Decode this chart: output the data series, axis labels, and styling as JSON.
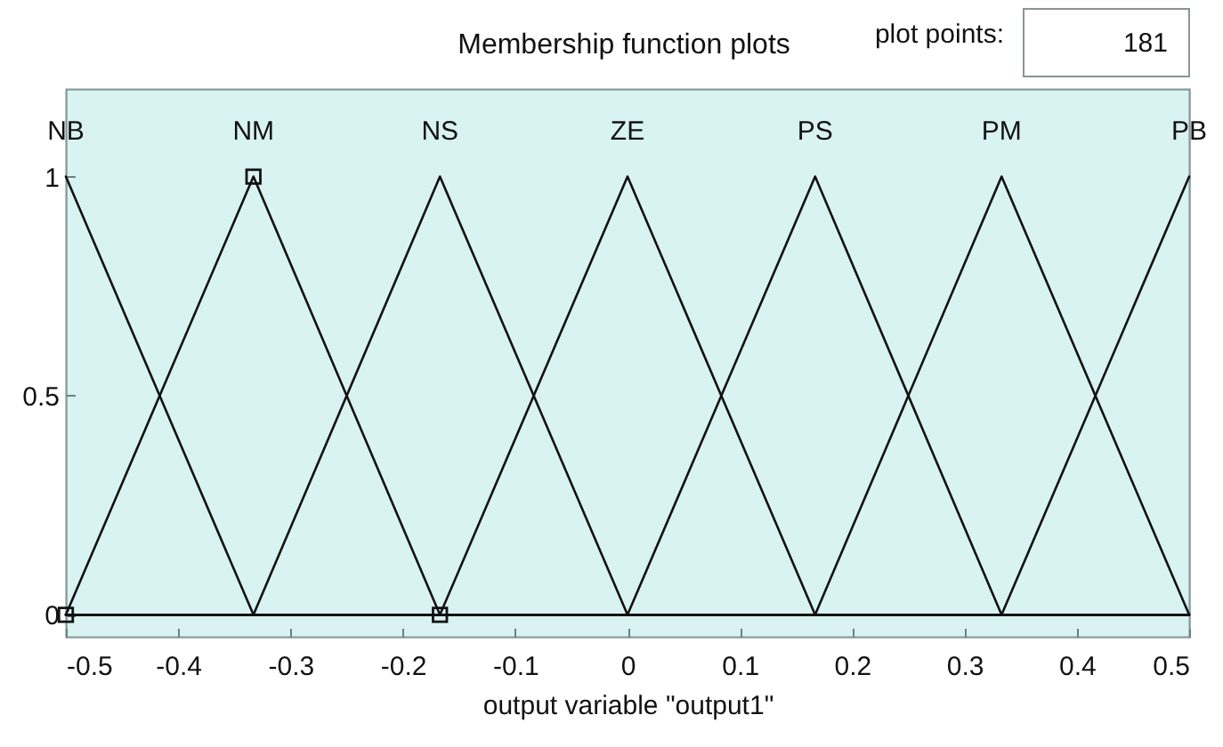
{
  "chart_data": {
    "type": "line",
    "title": "Membership function plots",
    "xlabel": "output variable \"output1\"",
    "annotations": [
      "plot points:",
      "181"
    ],
    "x": [
      -0.5,
      -0.333,
      -0.167,
      0,
      0.167,
      0.333,
      0.5
    ],
    "series": [
      {
        "name": "NB",
        "color": "#111111",
        "values": [
          1,
          0,
          0,
          0,
          0,
          0,
          0
        ]
      },
      {
        "name": "NM",
        "color": "#111111",
        "values": [
          0,
          1,
          0,
          0,
          0,
          0,
          0
        ]
      },
      {
        "name": "NS",
        "color": "#111111",
        "values": [
          0,
          0,
          1,
          0,
          0,
          0,
          0
        ]
      },
      {
        "name": "ZE",
        "color": "#111111",
        "values": [
          0,
          0,
          0,
          1,
          0,
          0,
          0
        ]
      },
      {
        "name": "PS",
        "color": "#111111",
        "values": [
          0,
          0,
          0,
          0,
          1,
          0,
          0
        ]
      },
      {
        "name": "PM",
        "color": "#111111",
        "values": [
          0,
          0,
          0,
          0,
          0,
          1,
          0
        ]
      },
      {
        "name": "PB",
        "color": "#111111",
        "values": [
          0,
          0,
          0,
          0,
          0,
          0,
          1
        ]
      },
      {
        "type": "scatter",
        "color": "#111111",
        "marker": "square",
        "x": [
          -0.5,
          -0.333,
          -0.167
        ],
        "values": [
          0,
          1,
          0
        ]
      }
    ],
    "xlim": [
      -0.5,
      0.5
    ],
    "xticks": [
      -0.5,
      -0.4,
      -0.3,
      -0.2,
      -0.1,
      0,
      0.1,
      0.2,
      0.3,
      0.4,
      0.5
    ],
    "ylim": [
      -0.05,
      1.2
    ],
    "yticks": [
      0,
      0.5,
      1
    ],
    "grid": false,
    "marker": "none",
    "line_style": "solid"
  }
}
